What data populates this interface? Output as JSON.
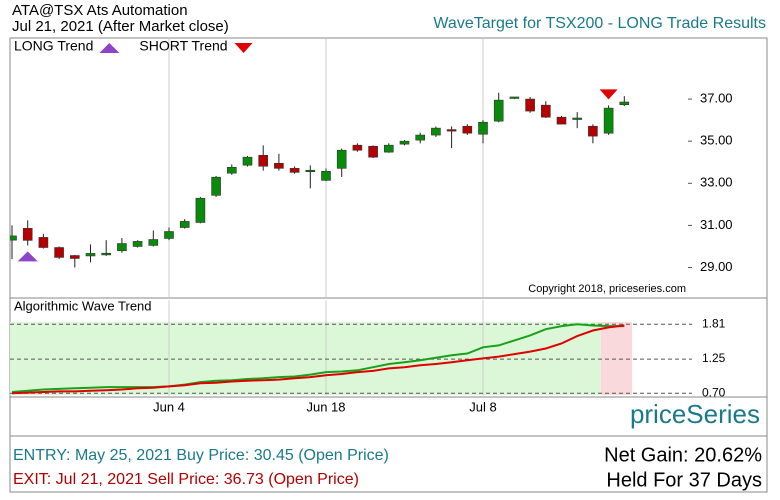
{
  "header": {
    "symbol": "ATA@TSX Ats Automation",
    "date": "Jul 21, 2021 (After Market close)",
    "title": "WaveTarget for TSX200 - LONG Trade Results",
    "legend": [
      {
        "label": "LONG Trend",
        "color": "#8e44c9",
        "shape": "up",
        "index": 1
      },
      {
        "label": "SHORT Trend",
        "color": "#e00000",
        "shape": "down",
        "index": 38
      }
    ],
    "copyright": "Copyright 2018, priceseries.com",
    "logo": "priceSeries"
  },
  "chart_data": [
    {
      "type": "candlestick",
      "categories": [
        null,
        null,
        null,
        null,
        null,
        null,
        null,
        null,
        null,
        null,
        "Jun 4",
        null,
        null,
        null,
        null,
        null,
        null,
        null,
        null,
        null,
        "Jun 18",
        null,
        null,
        null,
        null,
        null,
        null,
        null,
        null,
        null,
        "Jul 8",
        null,
        null,
        null,
        null,
        null,
        null,
        null,
        null,
        null
      ],
      "open": [
        30.3,
        30.86,
        30.43,
        29.95,
        29.57,
        29.55,
        29.6,
        29.8,
        30.0,
        30.05,
        30.38,
        30.9,
        31.14,
        32.43,
        33.48,
        33.86,
        34.33,
        33.95,
        33.71,
        33.55,
        33.14,
        33.71,
        34.81,
        34.76,
        34.48,
        34.86,
        35.05,
        35.29,
        35.55,
        35.71,
        35.33,
        35.95,
        37.05,
        37.0,
        36.71,
        36.14,
        36.05,
        35.71,
        35.38,
        36.73
      ],
      "high": [
        31.0,
        31.24,
        30.6,
        30.0,
        29.6,
        30.1,
        30.3,
        30.4,
        30.3,
        30.76,
        30.9,
        31.3,
        32.35,
        33.35,
        33.9,
        34.3,
        34.8,
        34.4,
        33.8,
        33.85,
        33.7,
        34.65,
        34.9,
        34.8,
        34.9,
        35.05,
        35.4,
        35.7,
        35.7,
        35.8,
        36.0,
        37.3,
        37.1,
        37.1,
        36.9,
        36.2,
        36.38,
        35.8,
        36.7,
        37.14
      ],
      "low": [
        29.4,
        30.05,
        29.9,
        29.4,
        29.0,
        29.25,
        29.55,
        29.7,
        29.95,
        30.0,
        30.3,
        30.85,
        31.1,
        32.35,
        33.4,
        33.8,
        33.6,
        33.6,
        33.45,
        32.76,
        33.1,
        33.3,
        34.5,
        34.2,
        34.45,
        34.8,
        34.9,
        35.2,
        34.67,
        35.3,
        34.9,
        35.9,
        37.0,
        36.35,
        36.1,
        35.8,
        35.62,
        34.9,
        35.3,
        36.67
      ],
      "close": [
        30.5,
        30.29,
        29.95,
        29.48,
        29.43,
        29.67,
        29.68,
        30.14,
        30.24,
        30.33,
        30.71,
        31.19,
        32.29,
        33.29,
        33.76,
        34.24,
        33.81,
        33.71,
        33.52,
        33.62,
        33.57,
        34.57,
        34.57,
        34.24,
        34.81,
        35.0,
        35.29,
        35.62,
        35.5,
        35.38,
        35.9,
        36.95,
        37.1,
        36.43,
        36.14,
        35.81,
        36.1,
        35.24,
        36.57,
        36.86
      ],
      "up_color": "#0a8a0a",
      "down_color": "#b40000",
      "ylim": [
        27.6,
        39.9
      ],
      "yticks": [
        {
          "value": 29,
          "label": "29.00"
        },
        {
          "value": 31,
          "label": "31.00"
        },
        {
          "value": 33,
          "label": "33.00"
        },
        {
          "value": 35,
          "label": "35.00"
        },
        {
          "value": 37,
          "label": "37.00"
        }
      ]
    },
    {
      "type": "line",
      "title": "Algorithmic Wave Trend",
      "series": [
        {
          "color": "#1aa01a",
          "values": [
            0.72,
            0.74,
            0.76,
            0.77,
            0.78,
            0.79,
            0.8,
            0.8,
            0.8,
            0.8,
            0.81,
            0.84,
            0.88,
            0.9,
            0.91,
            0.93,
            0.94,
            0.96,
            0.97,
            1.0,
            1.04,
            1.05,
            1.07,
            1.12,
            1.17,
            1.2,
            1.23,
            1.27,
            1.31,
            1.34,
            1.44,
            1.47,
            1.55,
            1.63,
            1.73,
            1.78,
            1.81,
            1.79,
            1.78,
            1.78
          ]
        },
        {
          "color": "#e00000",
          "values": [
            0.7,
            0.71,
            0.72,
            0.73,
            0.73,
            0.74,
            0.75,
            0.76,
            0.78,
            0.79,
            0.81,
            0.83,
            0.86,
            0.87,
            0.89,
            0.9,
            0.91,
            0.92,
            0.94,
            0.96,
            0.99,
            1.01,
            1.04,
            1.06,
            1.1,
            1.12,
            1.15,
            1.17,
            1.2,
            1.23,
            1.26,
            1.29,
            1.33,
            1.37,
            1.42,
            1.5,
            1.62,
            1.71,
            1.76,
            1.79
          ]
        }
      ],
      "ylim": [
        0.64,
        2.2
      ],
      "yticks": [
        {
          "value": 0.7,
          "label": "0.70"
        },
        1.25,
        1.81
      ]
    }
  ],
  "footer": {
    "entry": "ENTRY: May 25, 2021 Buy Price: 30.45 (Open Price)",
    "exit": "EXIT: Jul 21, 2021 Sell Price: 36.73 (Open Price)",
    "gain": "Net Gain: 20.62%",
    "held": "Held For 37 Days"
  }
}
